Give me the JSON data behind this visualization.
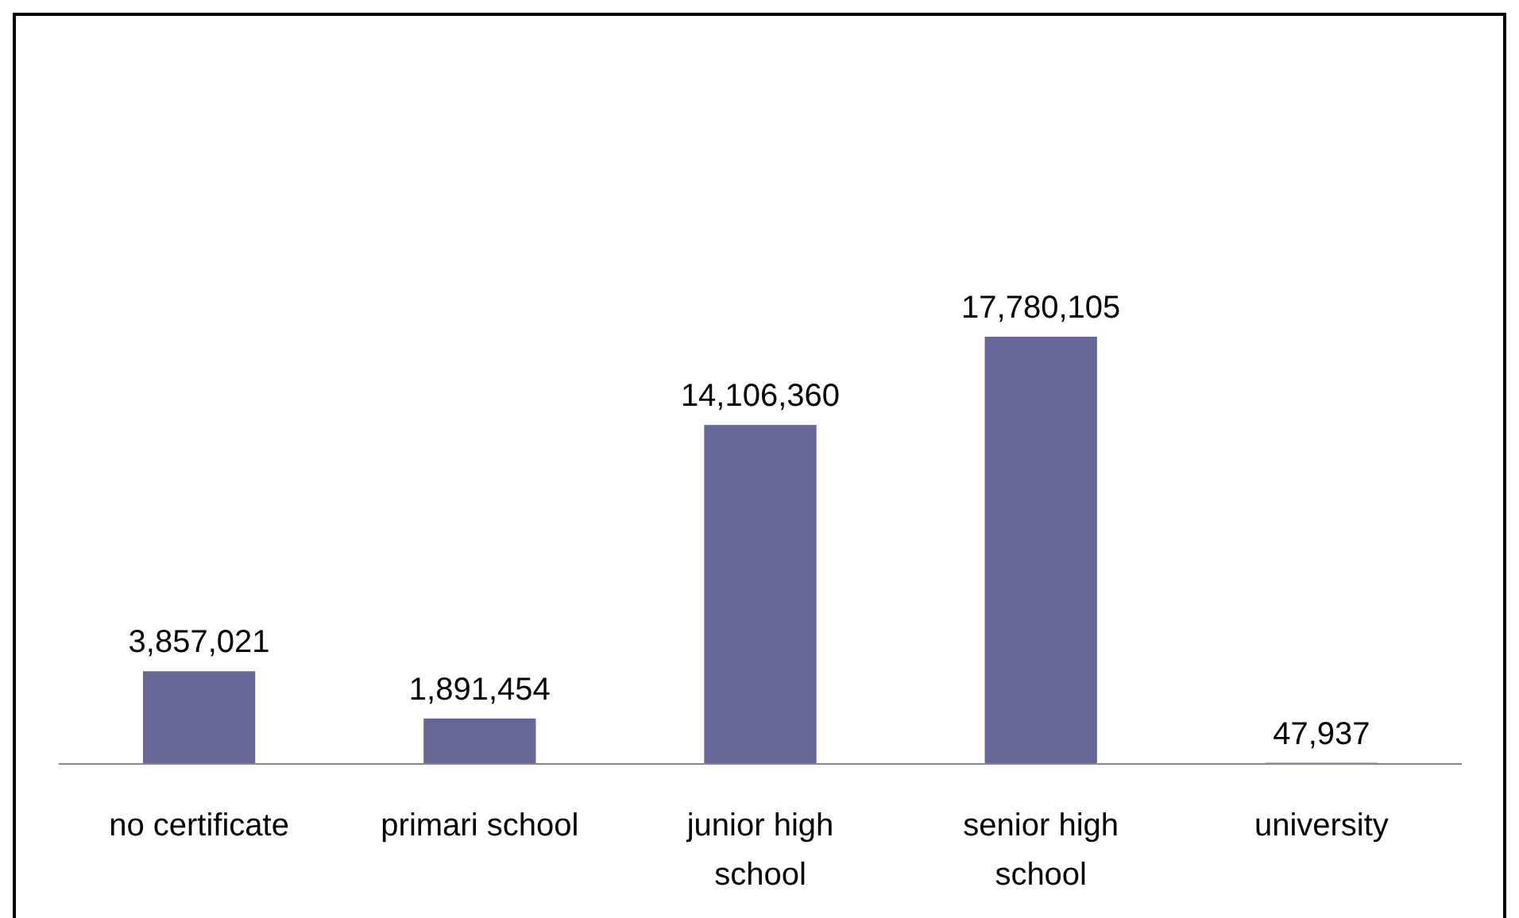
{
  "chart_data": {
    "type": "bar",
    "categories": [
      "no certificate",
      "primari school",
      "junior high school",
      "senior high school",
      "university"
    ],
    "values": [
      3857021,
      1891454,
      14106360,
      17780105,
      47937
    ],
    "color": "#666699",
    "value_labels": [
      "3,857,021",
      "1,891,454",
      "14,106,360",
      "17,780,105",
      "47,937"
    ]
  }
}
